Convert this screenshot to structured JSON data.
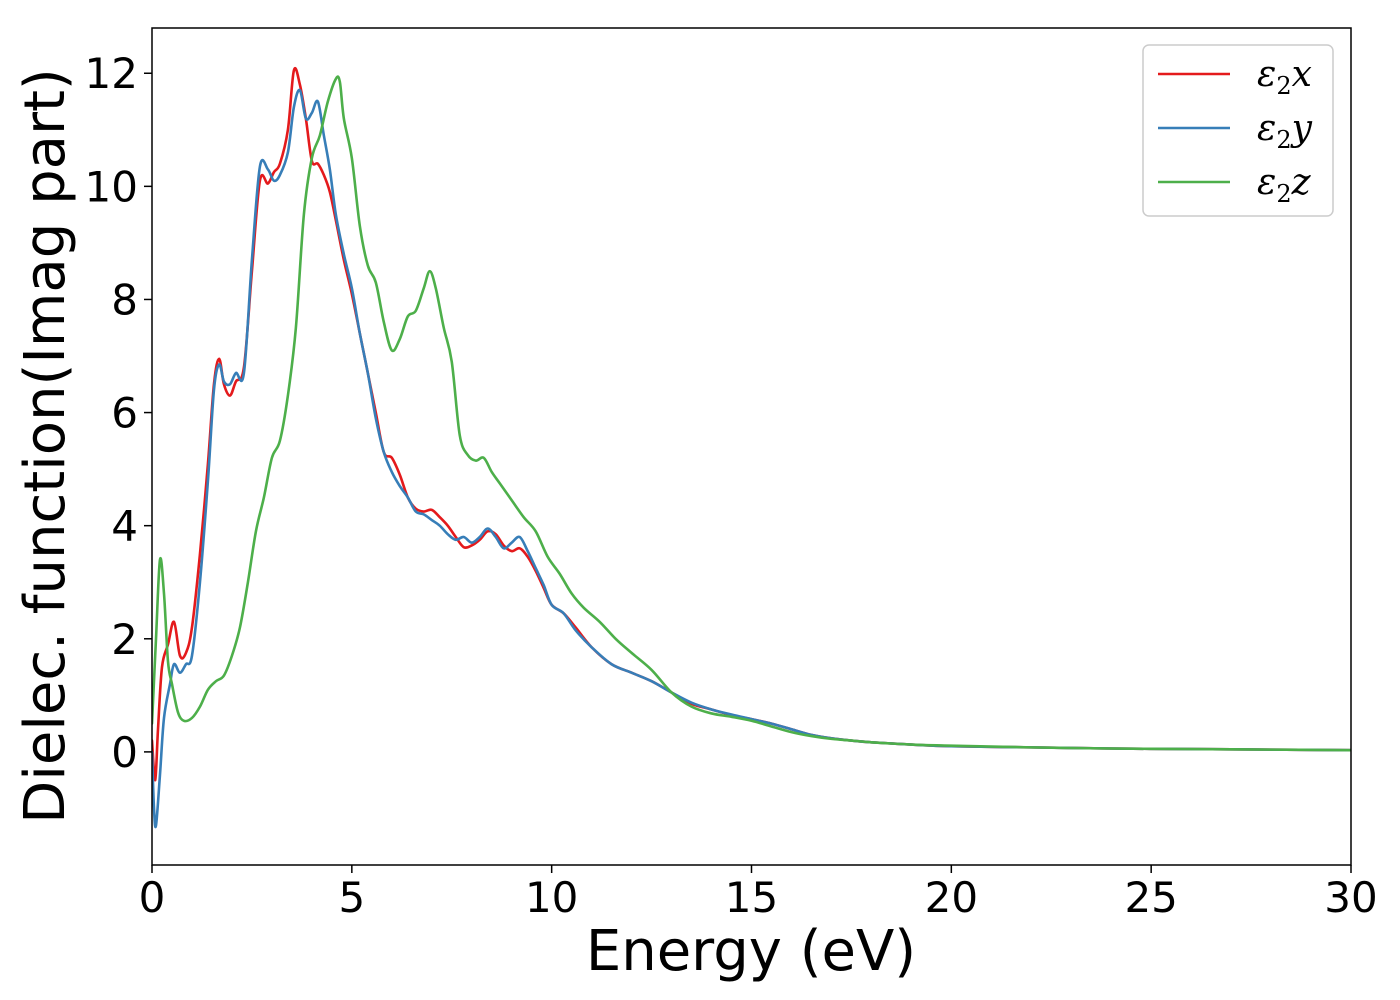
{
  "chart_data": {
    "type": "line",
    "title": "",
    "xlabel": "Energy (eV)",
    "ylabel": "Dielec. function(Imag part)",
    "xlim": [
      0,
      30
    ],
    "ylim": [
      -2,
      12.8
    ],
    "xticks": [
      0,
      5,
      10,
      15,
      20,
      25,
      30
    ],
    "yticks": [
      0,
      2,
      4,
      6,
      8,
      10,
      12
    ],
    "grid": false,
    "legend_position": "top-right",
    "series": [
      {
        "name": "ε2x",
        "legend": {
          "symbol": "ε",
          "sub": "2",
          "axis": "x"
        },
        "color": "#e41a1c",
        "x": [
          0,
          0.08,
          0.15,
          0.25,
          0.4,
          0.55,
          0.7,
          0.85,
          1.0,
          1.2,
          1.4,
          1.55,
          1.68,
          1.8,
          1.95,
          2.1,
          2.3,
          2.5,
          2.7,
          2.9,
          3.05,
          3.2,
          3.4,
          3.55,
          3.7,
          3.85,
          4.0,
          4.15,
          4.3,
          4.45,
          4.6,
          4.8,
          5.0,
          5.2,
          5.4,
          5.6,
          5.8,
          6.0,
          6.2,
          6.4,
          6.6,
          6.8,
          7.0,
          7.2,
          7.4,
          7.6,
          7.8,
          8.0,
          8.2,
          8.4,
          8.6,
          8.8,
          9.0,
          9.2,
          9.4,
          9.6,
          9.8,
          10.0,
          10.3,
          10.6,
          11.0,
          11.5,
          12.0,
          12.5,
          13.0,
          13.5,
          14.0,
          14.5,
          15.0,
          15.5,
          16.0,
          16.5,
          17.0,
          17.5,
          18.0,
          19.0,
          20.0,
          22.0,
          24.0,
          26.0,
          28.0,
          30.0
        ],
        "values": [
          0.2,
          -0.5,
          0.4,
          1.5,
          1.9,
          2.3,
          1.7,
          1.75,
          2.2,
          3.5,
          5.1,
          6.5,
          6.95,
          6.5,
          6.3,
          6.55,
          6.8,
          8.5,
          10.1,
          10.05,
          10.25,
          10.4,
          11.0,
          12.05,
          11.8,
          11.2,
          10.45,
          10.4,
          10.2,
          9.9,
          9.4,
          8.7,
          8.1,
          7.4,
          6.7,
          6.0,
          5.3,
          5.2,
          4.9,
          4.5,
          4.3,
          4.25,
          4.28,
          4.15,
          4.0,
          3.8,
          3.62,
          3.65,
          3.75,
          3.9,
          3.85,
          3.65,
          3.55,
          3.6,
          3.45,
          3.2,
          2.9,
          2.6,
          2.45,
          2.2,
          1.85,
          1.55,
          1.4,
          1.25,
          1.05,
          0.85,
          0.75,
          0.65,
          0.58,
          0.5,
          0.4,
          0.3,
          0.24,
          0.2,
          0.17,
          0.13,
          0.1,
          0.08,
          0.06,
          0.05,
          0.04,
          0.03
        ]
      },
      {
        "name": "ε2y",
        "legend": {
          "symbol": "ε",
          "sub": "2",
          "axis": "y"
        },
        "color": "#377eb8",
        "x": [
          0,
          0.05,
          0.1,
          0.2,
          0.3,
          0.45,
          0.55,
          0.7,
          0.85,
          1.0,
          1.2,
          1.4,
          1.55,
          1.68,
          1.8,
          1.95,
          2.1,
          2.3,
          2.5,
          2.7,
          2.9,
          3.05,
          3.2,
          3.4,
          3.55,
          3.7,
          3.85,
          4.0,
          4.15,
          4.3,
          4.45,
          4.6,
          4.8,
          5.0,
          5.2,
          5.4,
          5.6,
          5.8,
          6.0,
          6.2,
          6.4,
          6.6,
          6.8,
          7.0,
          7.2,
          7.4,
          7.6,
          7.8,
          8.0,
          8.2,
          8.4,
          8.6,
          8.8,
          9.0,
          9.2,
          9.4,
          9.6,
          9.8,
          10.0,
          10.3,
          10.6,
          11.0,
          11.5,
          12.0,
          12.5,
          13.0,
          13.5,
          14.0,
          14.5,
          15.0,
          15.5,
          16.0,
          16.5,
          17.0,
          17.5,
          18.0,
          19.0,
          20.0,
          22.0,
          24.0,
          26.0,
          28.0,
          30.0
        ],
        "values": [
          0.0,
          -1.0,
          -1.3,
          -0.4,
          0.6,
          1.2,
          1.55,
          1.4,
          1.55,
          1.7,
          3.0,
          4.8,
          6.4,
          6.85,
          6.55,
          6.5,
          6.7,
          6.7,
          8.7,
          10.35,
          10.3,
          10.1,
          10.2,
          10.6,
          11.4,
          11.7,
          11.2,
          11.3,
          11.5,
          10.9,
          10.3,
          9.5,
          8.8,
          8.2,
          7.4,
          6.7,
          5.9,
          5.3,
          4.95,
          4.7,
          4.5,
          4.25,
          4.2,
          4.1,
          4.0,
          3.85,
          3.75,
          3.8,
          3.7,
          3.8,
          3.95,
          3.8,
          3.6,
          3.7,
          3.8,
          3.55,
          3.25,
          2.95,
          2.6,
          2.45,
          2.15,
          1.85,
          1.55,
          1.4,
          1.25,
          1.05,
          0.87,
          0.75,
          0.66,
          0.58,
          0.5,
          0.4,
          0.3,
          0.24,
          0.2,
          0.17,
          0.13,
          0.1,
          0.08,
          0.06,
          0.05,
          0.04,
          0.03
        ]
      },
      {
        "name": "ε2z",
        "legend": {
          "symbol": "ε",
          "sub": "2",
          "axis": "z"
        },
        "color": "#4daf4a",
        "x": [
          0,
          0.1,
          0.2,
          0.3,
          0.4,
          0.5,
          0.65,
          0.8,
          1.0,
          1.2,
          1.4,
          1.6,
          1.8,
          2.0,
          2.2,
          2.4,
          2.6,
          2.8,
          3.0,
          3.2,
          3.4,
          3.6,
          3.8,
          4.0,
          4.2,
          4.4,
          4.6,
          4.7,
          4.8,
          5.0,
          5.2,
          5.4,
          5.6,
          5.8,
          6.0,
          6.2,
          6.4,
          6.6,
          6.8,
          6.95,
          7.1,
          7.3,
          7.5,
          7.7,
          7.9,
          8.1,
          8.3,
          8.5,
          8.7,
          9.0,
          9.3,
          9.6,
          9.9,
          10.2,
          10.5,
          10.8,
          11.2,
          11.6,
          12.0,
          12.5,
          13.0,
          13.5,
          14.0,
          14.5,
          15.0,
          15.5,
          16.0,
          16.5,
          17.0,
          17.5,
          18.0,
          19.0,
          20.0,
          22.0,
          24.0,
          26.0,
          28.0,
          30.0
        ],
        "values": [
          0.5,
          2.0,
          3.4,
          2.8,
          1.6,
          1.2,
          0.7,
          0.55,
          0.6,
          0.8,
          1.1,
          1.25,
          1.35,
          1.7,
          2.2,
          3.0,
          3.9,
          4.5,
          5.2,
          5.5,
          6.3,
          7.5,
          9.5,
          10.5,
          10.9,
          11.5,
          11.9,
          11.85,
          11.2,
          10.5,
          9.3,
          8.6,
          8.3,
          7.6,
          7.1,
          7.3,
          7.7,
          7.8,
          8.2,
          8.5,
          8.2,
          7.5,
          6.9,
          5.6,
          5.25,
          5.15,
          5.2,
          4.95,
          4.75,
          4.45,
          4.15,
          3.9,
          3.45,
          3.15,
          2.8,
          2.55,
          2.3,
          2.0,
          1.75,
          1.45,
          1.05,
          0.8,
          0.68,
          0.62,
          0.55,
          0.45,
          0.35,
          0.28,
          0.23,
          0.2,
          0.17,
          0.13,
          0.11,
          0.08,
          0.06,
          0.05,
          0.04,
          0.03
        ]
      }
    ]
  }
}
